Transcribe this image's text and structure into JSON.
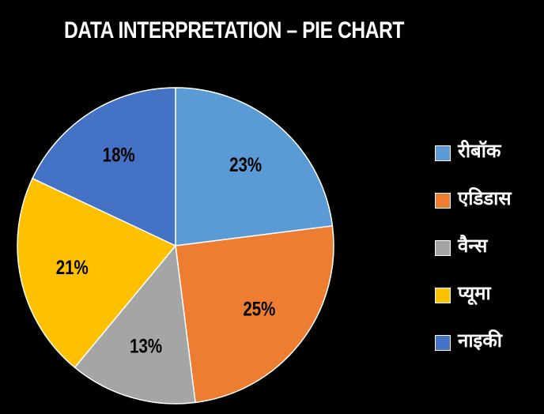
{
  "chart_data": {
    "type": "pie",
    "title": "DATA INTERPRETATION – PIE CHART",
    "categories": [
      "रीबॉक",
      "एडिडास",
      "वैन्स",
      "प्यूमा",
      "नाइकी"
    ],
    "values": [
      23,
      25,
      13,
      21,
      18
    ],
    "value_labels": [
      "23%",
      "25%",
      "13%",
      "21%",
      "18%"
    ],
    "colors": [
      "#5B9BD5",
      "#ED7D31",
      "#A5A5A5",
      "#FFC000",
      "#4472C4"
    ],
    "start_angle_deg": 0,
    "direction": "clockwise",
    "legend_position": "right",
    "background": "#000000",
    "slice_border_color": "#ffffff"
  }
}
